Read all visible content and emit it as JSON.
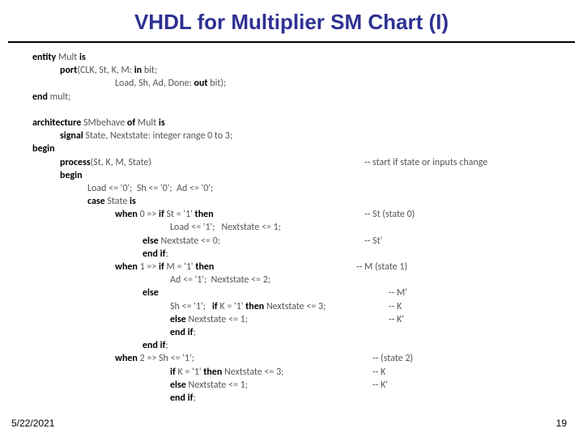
{
  "title": "VHDL for Multiplier SM Chart (I)",
  "date": "5/22/2021",
  "page": "19",
  "lines": [
    {
      "indent": 0,
      "segs": [
        {
          "t": "entity ",
          "b": 1
        },
        {
          "t": "Mult "
        },
        {
          "t": "is",
          "b": 1
        }
      ]
    },
    {
      "indent": 1,
      "segs": [
        {
          "t": "port",
          "b": 1
        },
        {
          "t": "(CLK, St, K, M: "
        },
        {
          "t": "in",
          "b": 1
        },
        {
          "t": " bit;"
        }
      ]
    },
    {
      "indent": 3,
      "segs": [
        {
          "t": "Load, Sh, Ad, Done: "
        },
        {
          "t": "out",
          "b": 1
        },
        {
          "t": " bit);"
        }
      ]
    },
    {
      "indent": 0,
      "segs": [
        {
          "t": "end",
          "b": 1
        },
        {
          "t": " mult;"
        }
      ]
    },
    {
      "indent": 0,
      "segs": [
        {
          "t": " "
        }
      ]
    },
    {
      "indent": 0,
      "segs": [
        {
          "t": "architecture ",
          "b": 1
        },
        {
          "t": "SMbehave "
        },
        {
          "t": "of",
          "b": 1
        },
        {
          "t": " Mult "
        },
        {
          "t": "is",
          "b": 1
        }
      ]
    },
    {
      "indent": 1,
      "segs": [
        {
          "t": "signal ",
          "b": 1
        },
        {
          "t": "State, Nextstate: integer range 0 to 3;"
        }
      ]
    },
    {
      "indent": 0,
      "segs": [
        {
          "t": "begin",
          "b": 1
        }
      ]
    },
    {
      "indent": 1,
      "segs": [
        {
          "t": "process",
          "b": 1
        },
        {
          "t": "(St, K, M, State)"
        }
      ],
      "comment": "-- start if state or inputs change",
      "ccol": 410
    },
    {
      "indent": 1,
      "segs": [
        {
          "t": "begin",
          "b": 1
        }
      ]
    },
    {
      "indent": 2,
      "segs": [
        {
          "t": "Load <= '0';  Sh <= '0';  Ad <= '0';"
        }
      ]
    },
    {
      "indent": 2,
      "segs": [
        {
          "t": "case ",
          "b": 1
        },
        {
          "t": "State "
        },
        {
          "t": "is",
          "b": 1
        }
      ]
    },
    {
      "indent": 3,
      "segs": [
        {
          "t": "when ",
          "b": 1
        },
        {
          "t": "0 => "
        },
        {
          "t": "if ",
          "b": 1
        },
        {
          "t": "St = '1' "
        },
        {
          "t": "then",
          "b": 1
        }
      ],
      "comment": "-- St (state 0)",
      "ccol": 410
    },
    {
      "indent": 5,
      "segs": [
        {
          "t": "Load <= '1';   Nextstate <= 1;"
        }
      ]
    },
    {
      "indent": 4,
      "segs": [
        {
          "t": "else ",
          "b": 1
        },
        {
          "t": "Nextstate <= 0;"
        }
      ],
      "comment": "-- St'",
      "ccol": 410
    },
    {
      "indent": 4,
      "segs": [
        {
          "t": "end if",
          "b": 1
        },
        {
          "t": ";"
        }
      ]
    },
    {
      "indent": 3,
      "segs": [
        {
          "t": "when ",
          "b": 1
        },
        {
          "t": "1 => "
        },
        {
          "t": "if ",
          "b": 1
        },
        {
          "t": "M = '1' "
        },
        {
          "t": "then",
          "b": 1
        }
      ],
      "comment": "-- M (state 1)",
      "ccol": 400
    },
    {
      "indent": 5,
      "segs": [
        {
          "t": "Ad <= '1';  Nextstate <= 2;"
        }
      ]
    },
    {
      "indent": 4,
      "segs": [
        {
          "t": "else",
          "b": 1
        }
      ],
      "comment": "-- M'",
      "ccol": 440
    },
    {
      "indent": 5,
      "segs": [
        {
          "t": "Sh <= '1';   "
        },
        {
          "t": "if ",
          "b": 1
        },
        {
          "t": "K = '1' "
        },
        {
          "t": "then ",
          "b": 1
        },
        {
          "t": "Nextstate <= 3;"
        }
      ],
      "comment": "-- K",
      "ccol": 440
    },
    {
      "indent": 5,
      "segs": [
        {
          "t": "else ",
          "b": 1
        },
        {
          "t": "Nextstate <= 1;"
        }
      ],
      "comment": "-- K'",
      "ccol": 440
    },
    {
      "indent": 5,
      "segs": [
        {
          "t": "end if",
          "b": 1
        },
        {
          "t": ";"
        }
      ]
    },
    {
      "indent": 4,
      "segs": [
        {
          "t": "end if",
          "b": 1
        },
        {
          "t": ";"
        }
      ]
    },
    {
      "indent": 3,
      "segs": [
        {
          "t": "when ",
          "b": 1
        },
        {
          "t": "2 => Sh <= '1';"
        }
      ],
      "comment": "-- (state 2)",
      "ccol": 420
    },
    {
      "indent": 5,
      "segs": [
        {
          "t": "if ",
          "b": 1
        },
        {
          "t": "K = '1' "
        },
        {
          "t": "then ",
          "b": 1
        },
        {
          "t": "Nextstate <= 3;"
        }
      ],
      "comment": "-- K",
      "ccol": 420
    },
    {
      "indent": 5,
      "segs": [
        {
          "t": "else ",
          "b": 1
        },
        {
          "t": "Nextstate <= 1;"
        }
      ],
      "comment": "-- K'",
      "ccol": 420
    },
    {
      "indent": 5,
      "segs": [
        {
          "t": "end if",
          "b": 1
        },
        {
          "t": ";"
        }
      ]
    }
  ]
}
